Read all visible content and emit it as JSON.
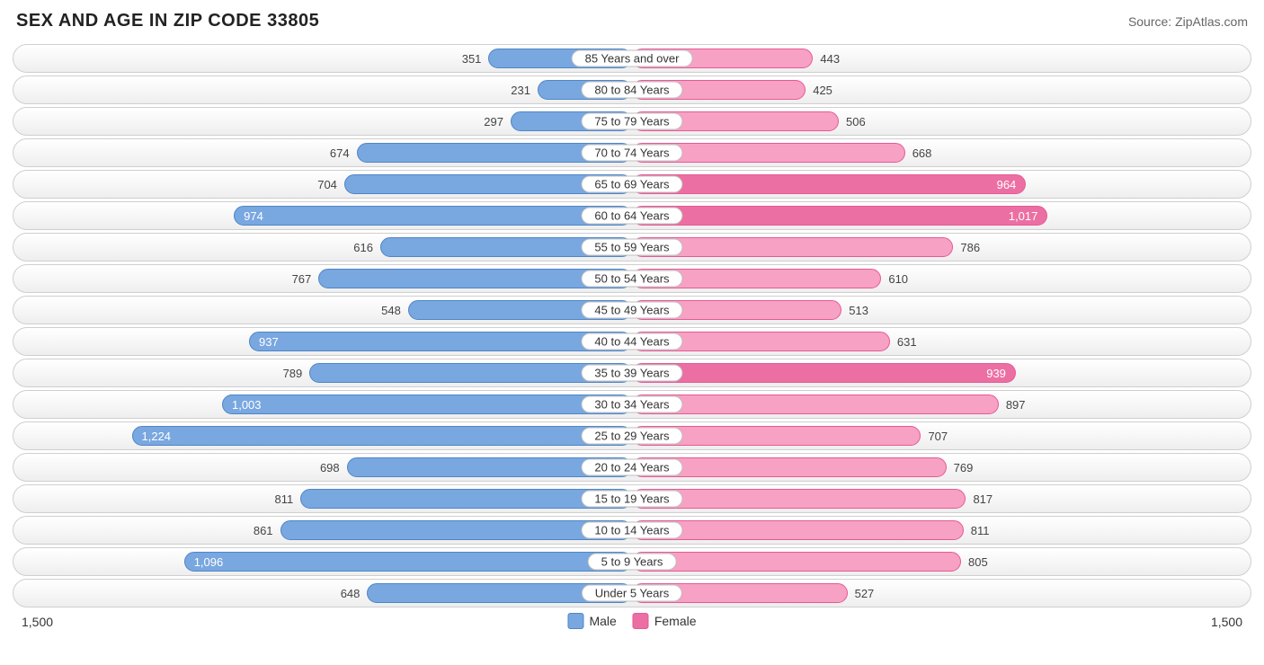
{
  "title": "SEX AND AGE IN ZIP CODE 33805",
  "source": "Source: ZipAtlas.com",
  "chart": {
    "type": "population-pyramid",
    "axis_max": 1500,
    "axis_label_left": "1,500",
    "axis_label_right": "1,500",
    "inside_label_threshold": 900,
    "colors": {
      "male_fill": "#79a7e0",
      "male_border": "#4f86c6",
      "female_fill_light": "#f7a1c4",
      "female_fill_dark": "#ec6fa3",
      "female_border": "#e65a94",
      "female_dark_threshold": 900,
      "track_border": "#cfcfcf",
      "badge_border": "#bfbfbf",
      "text": "#333333",
      "label_out": "#444444"
    },
    "legend": [
      {
        "label": "Male",
        "fill": "#79a7e0",
        "border": "#4f86c6"
      },
      {
        "label": "Female",
        "fill": "#ec6fa3",
        "border": "#e65a94"
      }
    ],
    "rows": [
      {
        "category": "85 Years and over",
        "male": 351,
        "female": 443
      },
      {
        "category": "80 to 84 Years",
        "male": 231,
        "female": 425
      },
      {
        "category": "75 to 79 Years",
        "male": 297,
        "female": 506
      },
      {
        "category": "70 to 74 Years",
        "male": 674,
        "female": 668
      },
      {
        "category": "65 to 69 Years",
        "male": 704,
        "female": 964
      },
      {
        "category": "60 to 64 Years",
        "male": 974,
        "female": 1017
      },
      {
        "category": "55 to 59 Years",
        "male": 616,
        "female": 786
      },
      {
        "category": "50 to 54 Years",
        "male": 767,
        "female": 610
      },
      {
        "category": "45 to 49 Years",
        "male": 548,
        "female": 513
      },
      {
        "category": "40 to 44 Years",
        "male": 937,
        "female": 631
      },
      {
        "category": "35 to 39 Years",
        "male": 789,
        "female": 939
      },
      {
        "category": "30 to 34 Years",
        "male": 1003,
        "female": 897
      },
      {
        "category": "25 to 29 Years",
        "male": 1224,
        "female": 707
      },
      {
        "category": "20 to 24 Years",
        "male": 698,
        "female": 769
      },
      {
        "category": "15 to 19 Years",
        "male": 811,
        "female": 817
      },
      {
        "category": "10 to 14 Years",
        "male": 861,
        "female": 811
      },
      {
        "category": "5 to 9 Years",
        "male": 1096,
        "female": 805
      },
      {
        "category": "Under 5 Years",
        "male": 648,
        "female": 527
      }
    ]
  }
}
